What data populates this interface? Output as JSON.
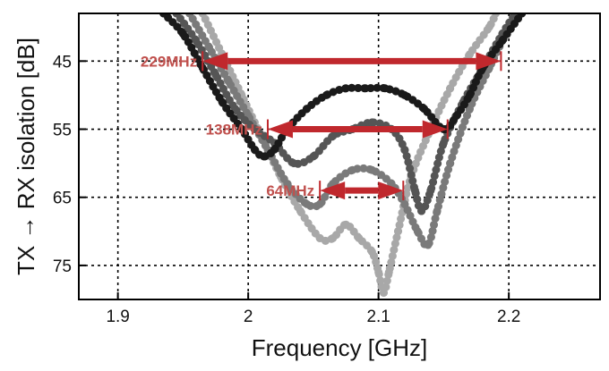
{
  "chart_data": {
    "type": "scatter",
    "title": "",
    "xlabel": "Frequency [GHz]",
    "ylabel": "TX → RX isolation [dB]",
    "xlim": [
      1.87,
      2.27
    ],
    "ylim": [
      38,
      80
    ],
    "y_inverted": true,
    "grid": true,
    "grid_style": "dotted",
    "x_ticks": [
      1.9,
      2.0,
      2.1,
      2.2
    ],
    "x_tick_labels": [
      "1.9",
      "2",
      "2.1",
      "2.2"
    ],
    "y_ticks": [
      45,
      55,
      65,
      75
    ],
    "y_tick_labels": [
      "45",
      "55",
      "65",
      "75"
    ],
    "series": [
      {
        "color": "#1a1a1a",
        "points": [
          [
            1.935,
            38
          ],
          [
            1.95,
            41
          ],
          [
            1.965,
            46
          ],
          [
            1.98,
            51
          ],
          [
            1.995,
            55
          ],
          [
            2.005,
            58
          ],
          [
            2.012,
            59
          ],
          [
            2.02,
            58
          ],
          [
            2.03,
            55
          ],
          [
            2.045,
            52
          ],
          [
            2.06,
            50
          ],
          [
            2.075,
            49
          ],
          [
            2.09,
            49
          ],
          [
            2.105,
            49
          ],
          [
            2.12,
            50
          ],
          [
            2.135,
            52
          ],
          [
            2.15,
            55
          ],
          [
            2.16,
            53
          ],
          [
            2.17,
            50
          ],
          [
            2.18,
            46
          ],
          [
            2.195,
            42
          ],
          [
            2.21,
            38
          ]
        ]
      },
      {
        "color": "#555555",
        "points": [
          [
            1.945,
            38
          ],
          [
            1.96,
            42
          ],
          [
            1.975,
            47
          ],
          [
            1.99,
            52
          ],
          [
            2.005,
            55
          ],
          [
            2.02,
            57
          ],
          [
            2.035,
            60
          ],
          [
            2.05,
            59
          ],
          [
            2.065,
            56
          ],
          [
            2.08,
            55
          ],
          [
            2.095,
            54
          ],
          [
            2.11,
            55
          ],
          [
            2.12,
            58
          ],
          [
            2.128,
            64
          ],
          [
            2.133,
            67
          ],
          [
            2.14,
            64
          ],
          [
            2.15,
            57
          ],
          [
            2.165,
            51
          ],
          [
            2.18,
            46
          ],
          [
            2.195,
            41
          ],
          [
            2.205,
            38
          ]
        ]
      },
      {
        "color": "#7a7a7a",
        "points": [
          [
            1.955,
            38
          ],
          [
            1.97,
            43
          ],
          [
            1.985,
            48
          ],
          [
            2.0,
            53
          ],
          [
            2.015,
            58
          ],
          [
            2.03,
            63
          ],
          [
            2.045,
            66
          ],
          [
            2.055,
            66
          ],
          [
            2.065,
            63
          ],
          [
            2.08,
            61
          ],
          [
            2.095,
            61
          ],
          [
            2.11,
            63
          ],
          [
            2.12,
            66
          ],
          [
            2.13,
            70
          ],
          [
            2.138,
            72
          ],
          [
            2.145,
            67
          ],
          [
            2.155,
            60
          ],
          [
            2.17,
            52
          ],
          [
            2.185,
            46
          ],
          [
            2.2,
            40
          ],
          [
            2.205,
            38
          ]
        ]
      },
      {
        "color": "#a8a8a8",
        "points": [
          [
            1.965,
            38
          ],
          [
            1.98,
            44
          ],
          [
            1.995,
            50
          ],
          [
            2.01,
            56
          ],
          [
            2.025,
            62
          ],
          [
            2.04,
            67
          ],
          [
            2.055,
            71
          ],
          [
            2.065,
            71
          ],
          [
            2.075,
            69
          ],
          [
            2.085,
            71
          ],
          [
            2.095,
            73
          ],
          [
            2.1,
            76
          ],
          [
            2.104,
            79
          ],
          [
            2.108,
            76
          ],
          [
            2.115,
            70
          ],
          [
            2.125,
            62
          ],
          [
            2.14,
            55
          ],
          [
            2.155,
            49
          ],
          [
            2.17,
            44
          ],
          [
            2.185,
            40
          ],
          [
            2.19,
            38
          ]
        ]
      }
    ],
    "annotations": [
      {
        "text": "229MHz",
        "x_start": 1.965,
        "x_end": 2.194,
        "y": 45
      },
      {
        "text": "138MHz",
        "x_start": 2.015,
        "x_end": 2.153,
        "y": 55
      },
      {
        "text": "64MHz",
        "x_start": 2.055,
        "x_end": 2.119,
        "y": 64
      }
    ],
    "arrow_color": "#c0282d",
    "label_color": "#c0504d"
  }
}
